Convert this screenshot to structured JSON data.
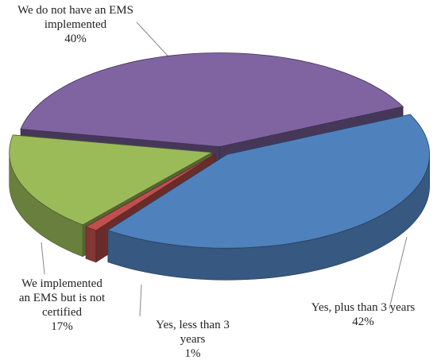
{
  "chart_data": {
    "type": "pie3d",
    "categories": [
      "Yes, plus than 3 years",
      "Yes, less than 3 years",
      "We implemented an EMS but is not certified",
      "We do not have an EMS implemented"
    ],
    "values": [
      42,
      1,
      17,
      40
    ],
    "value_labels": [
      "42%",
      "1%",
      "17%",
      "40%"
    ],
    "colors": [
      "#4f81bd",
      "#c0504d",
      "#9bbb59",
      "#8064a2"
    ]
  }
}
